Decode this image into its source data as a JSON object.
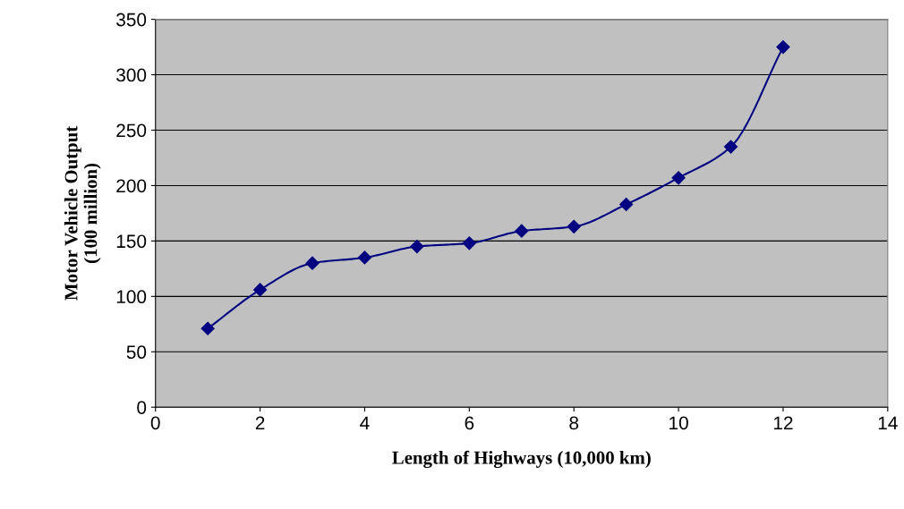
{
  "chart_data": {
    "type": "line",
    "xlabel": "Length of Highways (10,000 km)",
    "ylabel": "Motor Vehicle Output\n(100 million)",
    "x": [
      1,
      2,
      3,
      4,
      5,
      6,
      7,
      8,
      9,
      10,
      11,
      12
    ],
    "series": [
      {
        "color": "#000080",
        "values": [
          71,
          106,
          130,
          135,
          145,
          148,
          159,
          163,
          183,
          207,
          235,
          325
        ]
      }
    ],
    "xlim": [
      0,
      14
    ],
    "xticks": [
      0,
      2,
      4,
      6,
      8,
      10,
      12,
      14
    ],
    "ylim": [
      0,
      350
    ],
    "yticks": [
      0,
      50,
      100,
      150,
      200,
      250,
      300,
      350
    ],
    "grid": "y",
    "marker": "diamond",
    "line_style": "solid",
    "legend": false
  }
}
